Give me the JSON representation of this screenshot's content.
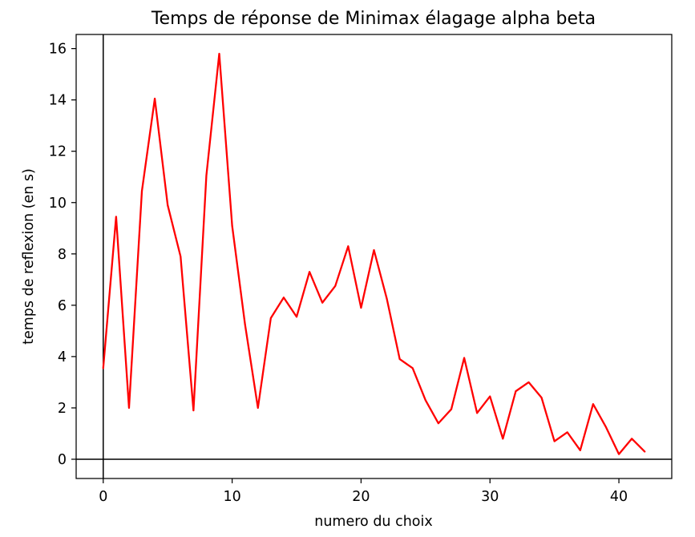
{
  "chart_data": {
    "type": "line",
    "title": "Temps de réponse de Minimax élagage alpha beta",
    "xlabel": "numero du choix",
    "ylabel": "temps de reflexion (en s)",
    "xlim": [
      -2.1,
      44.1
    ],
    "ylim": [
      -0.75,
      16.55
    ],
    "xticks": [
      0,
      10,
      20,
      30,
      40
    ],
    "yticks": [
      0,
      2,
      4,
      6,
      8,
      10,
      12,
      14,
      16
    ],
    "grid": false,
    "reference_lines": {
      "x": 0,
      "y": 0
    },
    "series": [
      {
        "color": "#ff0000",
        "x": [
          0,
          1,
          2,
          3,
          4,
          5,
          6,
          7,
          8,
          9,
          10,
          11,
          12,
          13,
          14,
          15,
          16,
          17,
          18,
          19,
          20,
          21,
          22,
          23,
          24,
          25,
          26,
          27,
          28,
          29,
          30,
          31,
          32,
          33,
          34,
          35,
          36,
          37,
          38,
          39,
          40,
          41,
          42
        ],
        "y": [
          3.55,
          9.45,
          2.0,
          10.45,
          14.05,
          9.9,
          7.9,
          1.9,
          11.05,
          15.8,
          9.1,
          5.25,
          2.0,
          5.5,
          6.3,
          5.55,
          7.3,
          6.1,
          6.75,
          8.3,
          5.9,
          8.15,
          6.25,
          3.9,
          3.55,
          2.3,
          1.4,
          1.95,
          3.95,
          1.8,
          2.45,
          0.8,
          2.65,
          3.0,
          2.4,
          0.7,
          1.05,
          0.35,
          2.15,
          1.25,
          0.2,
          0.8,
          0.3
        ]
      }
    ]
  }
}
